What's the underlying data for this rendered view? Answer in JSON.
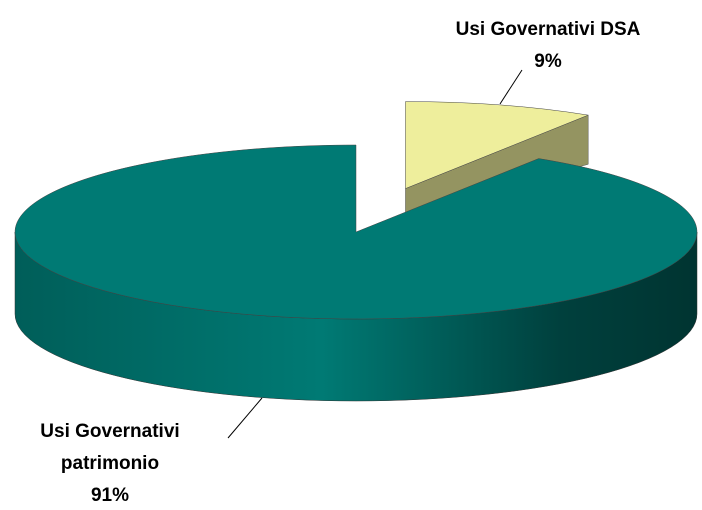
{
  "chart_data": {
    "type": "pie",
    "categories": [
      "Usi Governativi DSA",
      "Usi Governativi patrimonio"
    ],
    "values": [
      9,
      91
    ],
    "value_labels": [
      "9%",
      "91%"
    ],
    "colors": [
      "#eeee9c",
      "#007a74"
    ]
  }
}
